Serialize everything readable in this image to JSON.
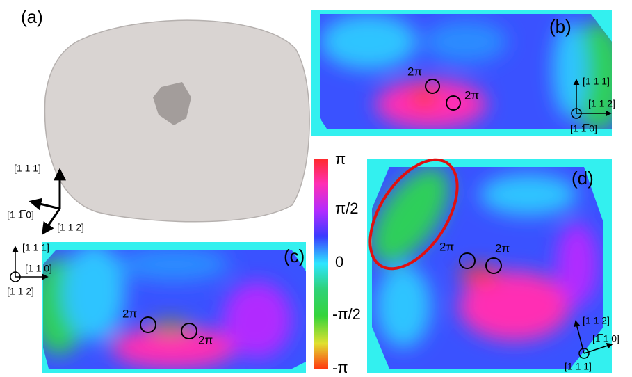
{
  "panels": [
    {
      "label": "(a)",
      "axes": [
        "[1 1 1]",
        "[1 1̅ 0]",
        "[1 1 2̅]"
      ]
    },
    {
      "label": "(b)",
      "axes": [
        "[1 1 1]",
        "[1 1 2̅]",
        "[1 1̅ 0]"
      ],
      "vortex_labels": [
        "2π",
        "2π"
      ]
    },
    {
      "label": "(c)",
      "axes": [
        "[1 1 1]",
        "[1̅ 1 0]",
        "[1 1 2̅]"
      ],
      "vortex_labels": [
        "2π",
        "2π"
      ]
    },
    {
      "label": "(d)",
      "axes": [
        "[1 1 2̅]",
        "[1̅ 1 0]",
        "[1̅ 1̅ 1̅]"
      ],
      "vortex_labels": [
        "2π",
        "2π"
      ]
    }
  ],
  "colorbar": {
    "ticks": [
      "π",
      "π/2",
      "0",
      "-π/2",
      "-π"
    ]
  }
}
